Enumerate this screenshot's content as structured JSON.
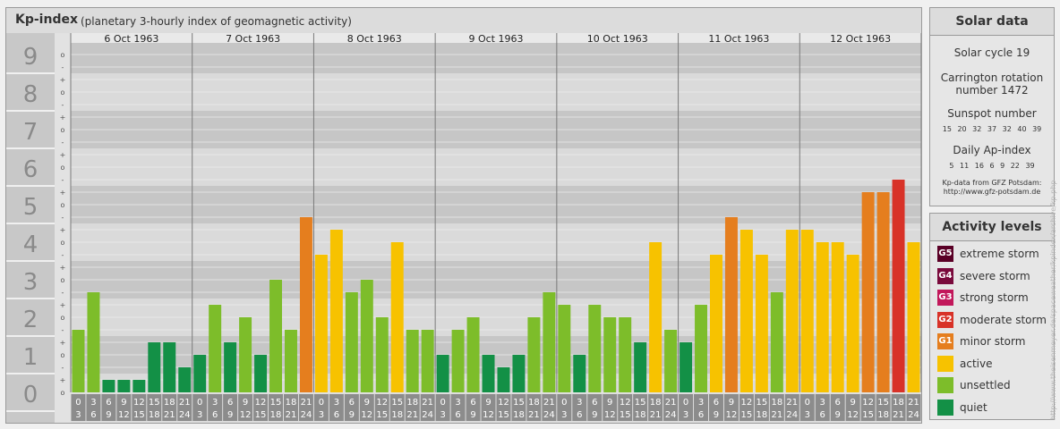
{
  "header": {
    "title": "Kp-index",
    "subtitle": "(planetary 3-hourly index of geomagnetic activity)"
  },
  "chart_data": {
    "type": "bar",
    "y_levels": [
      "0",
      "1",
      "2",
      "3",
      "4",
      "5",
      "6",
      "7",
      "8",
      "9"
    ],
    "y_minor_labels": [
      "o",
      "+",
      "-",
      "o",
      "+",
      "-",
      "o",
      "+",
      "-",
      "o",
      "+",
      "-",
      "o",
      "+",
      "-",
      "o",
      "+",
      "-",
      "o",
      "+",
      "-",
      "o",
      "+",
      "-",
      "o",
      "+",
      "-",
      "o"
    ],
    "ylim": [
      0,
      9
    ],
    "days": [
      "6 Oct 1963",
      "7 Oct 1963",
      "8 Oct 1963",
      "9 Oct 1963",
      "10 Oct 1963",
      "11 Oct 1963",
      "12 Oct 1963"
    ],
    "hour_start": [
      "0",
      "3",
      "6",
      "9",
      "12",
      "15",
      "18",
      "21"
    ],
    "hour_end": [
      "3",
      "6",
      "9",
      "12",
      "15",
      "18",
      "21",
      "24"
    ],
    "values": [
      [
        1.667,
        2.667,
        0.333,
        0.333,
        0.333,
        1.333,
        1.333,
        0.667
      ],
      [
        1.0,
        2.333,
        1.333,
        2.0,
        1.0,
        3.0,
        1.667,
        4.667
      ],
      [
        3.667,
        4.333,
        2.667,
        3.0,
        2.0,
        4.0,
        1.667,
        1.667
      ],
      [
        1.0,
        1.667,
        2.0,
        1.0,
        0.667,
        1.0,
        2.0,
        2.667
      ],
      [
        2.333,
        1.0,
        2.333,
        2.0,
        2.0,
        1.333,
        4.0,
        1.667
      ],
      [
        1.333,
        2.333,
        3.667,
        4.667,
        4.333,
        3.667,
        2.667,
        4.333
      ],
      [
        4.333,
        4.0,
        4.0,
        3.667,
        5.333,
        5.333,
        5.667,
        4.0
      ]
    ]
  },
  "solar_data": {
    "title": "Solar data",
    "solar_cycle": "Solar cycle 19",
    "carrington_line1": "Carrington rotation",
    "carrington_line2": "number 1472",
    "sunspot_title": "Sunspot number",
    "sunspot_values": "15 20 32 37 32 40 39",
    "ap_title": "Daily Ap-index",
    "ap_values": "5 11 16 6 9 22 39",
    "credit_line1": "Kp-data from GFZ Potsdam:",
    "credit_line2": "http://www.gfz-potsdam.de"
  },
  "activity_levels": {
    "title": "Activity levels",
    "items": [
      {
        "badge": "G5",
        "label": "extreme storm",
        "color": "#5a0026"
      },
      {
        "badge": "G4",
        "label": "severe storm",
        "color": "#7a0a3c"
      },
      {
        "badge": "G3",
        "label": "strong storm",
        "color": "#c2185b"
      },
      {
        "badge": "G2",
        "label": "moderate storm",
        "color": "#d83228"
      },
      {
        "badge": "G1",
        "label": "minor storm",
        "color": "#e57e1e"
      },
      {
        "badge": "",
        "label": "active",
        "color": "#f7c200"
      },
      {
        "badge": "",
        "label": "unsettled",
        "color": "#7dbd2a"
      },
      {
        "badge": "",
        "label": "quiet",
        "color": "#139046"
      }
    ]
  },
  "watermark": "http://www.theisenmeyer.de/spaceweather/kpindex/archive/kp.php"
}
